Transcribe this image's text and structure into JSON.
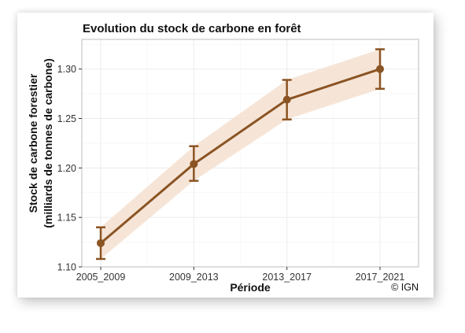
{
  "chart_data": {
    "type": "line",
    "title": "Evolution du stock de carbone en forêt",
    "xlabel": "Période",
    "ylabel_line1": "Stock de carbone forestier",
    "ylabel_line2": "(milliards de tonnes de carbone)",
    "credit": "© IGN",
    "categories": [
      "2005_2009",
      "2009_2013",
      "2013_2017",
      "2017_2021"
    ],
    "series": [
      {
        "values": [
          1.124,
          1.204,
          1.269,
          1.3
        ],
        "error_low": [
          1.108,
          1.187,
          1.249,
          1.28
        ],
        "error_high": [
          1.14,
          1.222,
          1.289,
          1.32
        ]
      }
    ],
    "yticks": [
      "1.10",
      "1.15",
      "1.20",
      "1.25",
      "1.30"
    ],
    "ylim": [
      1.1,
      1.33
    ],
    "grid": true,
    "colors": {
      "line": "#8B5424",
      "band": "#F5E0D0",
      "grid": "#EBEBEB",
      "panel_border": "#BDBDBD"
    }
  }
}
